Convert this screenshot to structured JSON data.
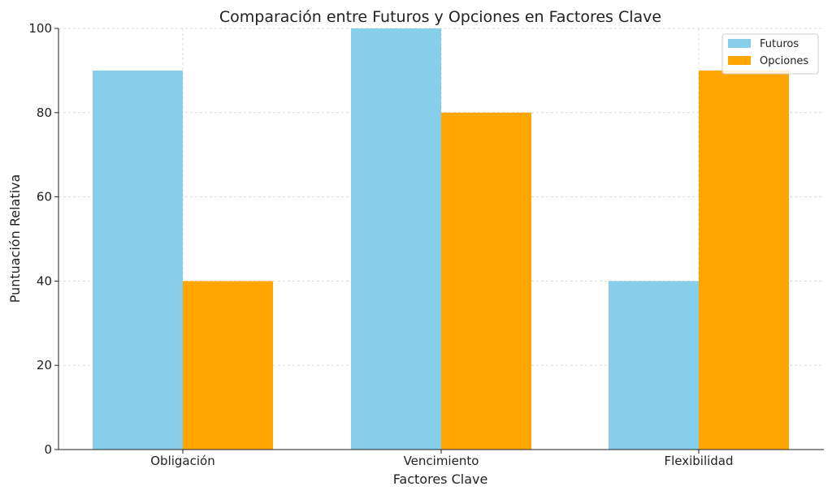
{
  "chart_data": {
    "type": "bar",
    "title": "Comparación entre Futuros y Opciones en Factores Clave",
    "xlabel": "Factores Clave",
    "ylabel": "Puntuación Relativa",
    "categories": [
      "Obligación",
      "Vencimiento",
      "Flexibilidad"
    ],
    "series": [
      {
        "name": "Futuros",
        "values": [
          90,
          100,
          40
        ],
        "color": "#87CEEB"
      },
      {
        "name": "Opciones",
        "values": [
          40,
          80,
          90
        ],
        "color": "#FFA500"
      }
    ],
    "ylim": [
      0,
      100
    ],
    "yticks": [
      0,
      20,
      40,
      60,
      80,
      100
    ],
    "grid": true,
    "legend_position": "top-right"
  }
}
